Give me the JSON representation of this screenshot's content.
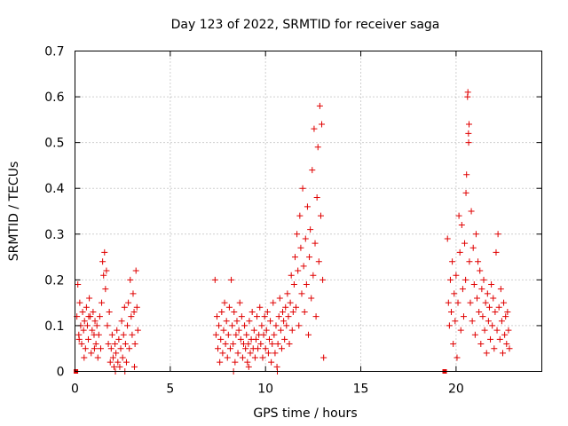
{
  "chart_data": {
    "type": "scatter",
    "title": "Day 123 of 2022, SRMTID for receiver saga",
    "xlabel": "GPS time / hours",
    "ylabel": "SRMTID / TECUs",
    "xlim": [
      0,
      24.5
    ],
    "ylim": [
      0,
      0.7
    ],
    "x_ticks": [
      0,
      5,
      10,
      15,
      20
    ],
    "x_tick_labels": [
      "0",
      "5",
      "10",
      "15",
      "20"
    ],
    "y_ticks": [
      0,
      0.1,
      0.2,
      0.3,
      0.4,
      0.5,
      0.6,
      0.7
    ],
    "y_tick_labels": [
      "0",
      "0.1",
      "0.2",
      "0.3",
      "0.4",
      "0.5",
      "0.6",
      "0.7"
    ],
    "grid": true,
    "marker": "plus",
    "color": "#e00000",
    "zero_markers": [
      [
        0.05,
        0
      ],
      [
        19.4,
        0
      ]
    ],
    "series": [
      {
        "name": "SRMTID",
        "points": [
          [
            0.1,
            0.12
          ],
          [
            0.15,
            0.19
          ],
          [
            0.2,
            0.08
          ],
          [
            0.25,
            0.15
          ],
          [
            0.3,
            0.1
          ],
          [
            0.35,
            0.06
          ],
          [
            0.4,
            0.13
          ],
          [
            0.45,
            0.09
          ],
          [
            0.5,
            0.11
          ],
          [
            0.55,
            0.05
          ],
          [
            0.6,
            0.14
          ],
          [
            0.65,
            0.1
          ],
          [
            0.7,
            0.07
          ],
          [
            0.75,
            0.16
          ],
          [
            0.8,
            0.12
          ],
          [
            0.85,
            0.04
          ],
          [
            0.9,
            0.09
          ],
          [
            0.95,
            0.13
          ],
          [
            1.0,
            0.08
          ],
          [
            1.05,
            0.11
          ],
          [
            1.1,
            0.06
          ],
          [
            1.15,
            0.1
          ],
          [
            1.2,
            0.03
          ],
          [
            1.25,
            0.08
          ],
          [
            1.3,
            0.12
          ],
          [
            1.35,
            0.05
          ],
          [
            1.4,
            0.15
          ],
          [
            1.45,
            0.24
          ],
          [
            1.5,
            0.21
          ],
          [
            1.55,
            0.26
          ],
          [
            1.6,
            0.18
          ],
          [
            1.65,
            0.22
          ],
          [
            1.7,
            0.1
          ],
          [
            1.75,
            0.06
          ],
          [
            1.8,
            0.13
          ],
          [
            1.85,
            0.02
          ],
          [
            1.9,
            0.05
          ],
          [
            1.95,
            0.08
          ],
          [
            2.0,
            0.03
          ],
          [
            2.05,
            0.01
          ],
          [
            2.1,
            0.06
          ],
          [
            2.15,
            0.04
          ],
          [
            2.2,
            0.09
          ],
          [
            2.25,
            0.02
          ],
          [
            2.3,
            0.07
          ],
          [
            2.35,
            0.01
          ],
          [
            2.4,
            0.05
          ],
          [
            2.45,
            0.11
          ],
          [
            2.5,
            0.03
          ],
          [
            2.55,
            0.08
          ],
          [
            2.6,
            0.14
          ],
          [
            2.65,
            0.06
          ],
          [
            2.7,
            0.02
          ],
          [
            2.75,
            0.1
          ],
          [
            2.8,
            0.15
          ],
          [
            2.85,
            0.05
          ],
          [
            2.9,
            0.2
          ],
          [
            2.95,
            0.12
          ],
          [
            3.0,
            0.08
          ],
          [
            3.05,
            0.17
          ],
          [
            3.1,
            0.13
          ],
          [
            3.15,
            0.06
          ],
          [
            3.2,
            0.22
          ],
          [
            3.25,
            0.14
          ],
          [
            3.3,
            0.09
          ],
          [
            0.22,
            0.07
          ],
          [
            0.48,
            0.03
          ],
          [
            0.72,
            0.12
          ],
          [
            1.02,
            0.05
          ],
          [
            2.12,
            0.0
          ],
          [
            2.62,
            0.0
          ],
          [
            3.12,
            0.01
          ],
          [
            7.35,
            0.2
          ],
          [
            7.4,
            0.08
          ],
          [
            7.45,
            0.12
          ],
          [
            7.5,
            0.05
          ],
          [
            7.55,
            0.1
          ],
          [
            7.6,
            0.02
          ],
          [
            7.65,
            0.07
          ],
          [
            7.7,
            0.13
          ],
          [
            7.75,
            0.04
          ],
          [
            7.8,
            0.09
          ],
          [
            7.85,
            0.15
          ],
          [
            7.9,
            0.06
          ],
          [
            7.95,
            0.11
          ],
          [
            8.0,
            0.03
          ],
          [
            8.05,
            0.08
          ],
          [
            8.1,
            0.14
          ],
          [
            8.15,
            0.05
          ],
          [
            8.2,
            0.2
          ],
          [
            8.25,
            0.1
          ],
          [
            8.3,
            0.06
          ],
          [
            8.35,
            0.13
          ],
          [
            8.4,
            0.02
          ],
          [
            8.45,
            0.08
          ],
          [
            8.5,
            0.11
          ],
          [
            8.55,
            0.04
          ],
          [
            8.6,
            0.09
          ],
          [
            8.65,
            0.15
          ],
          [
            8.7,
            0.07
          ],
          [
            8.75,
            0.12
          ],
          [
            8.8,
            0.03
          ],
          [
            8.85,
            0.06
          ],
          [
            8.9,
            0.1
          ],
          [
            8.95,
            0.05
          ],
          [
            9.0,
            0.08
          ],
          [
            9.05,
            0.02
          ],
          [
            9.1,
            0.06
          ],
          [
            9.15,
            0.11
          ],
          [
            9.2,
            0.04
          ],
          [
            9.25,
            0.07
          ],
          [
            9.3,
            0.13
          ],
          [
            9.35,
            0.05
          ],
          [
            9.4,
            0.09
          ],
          [
            9.45,
            0.03
          ],
          [
            9.5,
            0.07
          ],
          [
            9.55,
            0.12
          ],
          [
            9.6,
            0.05
          ],
          [
            9.65,
            0.08
          ],
          [
            9.7,
            0.14
          ],
          [
            9.75,
            0.06
          ],
          [
            9.8,
            0.1
          ],
          [
            9.85,
            0.03
          ],
          [
            9.9,
            0.08
          ],
          [
            9.95,
            0.12
          ],
          [
            10.0,
            0.05
          ],
          [
            10.05,
            0.09
          ],
          [
            10.1,
            0.13
          ],
          [
            10.15,
            0.04
          ],
          [
            10.2,
            0.07
          ],
          [
            10.25,
            0.11
          ],
          [
            10.3,
            0.02
          ],
          [
            10.35,
            0.06
          ],
          [
            10.4,
            0.15
          ],
          [
            10.45,
            0.08
          ],
          [
            10.5,
            0.04
          ],
          [
            10.55,
            0.1
          ],
          [
            10.6,
            0.01
          ],
          [
            10.65,
            0.06
          ],
          [
            10.7,
            0.12
          ],
          [
            10.75,
            0.16
          ],
          [
            10.8,
            0.09
          ],
          [
            10.85,
            0.05
          ],
          [
            10.9,
            0.13
          ],
          [
            10.95,
            0.11
          ],
          [
            11.0,
            0.07
          ],
          [
            11.05,
            0.14
          ],
          [
            11.1,
            0.1
          ],
          [
            11.15,
            0.17
          ],
          [
            11.2,
            0.12
          ],
          [
            11.25,
            0.06
          ],
          [
            11.3,
            0.15
          ],
          [
            11.35,
            0.21
          ],
          [
            11.4,
            0.09
          ],
          [
            11.45,
            0.13
          ],
          [
            11.5,
            0.19
          ],
          [
            11.55,
            0.25
          ],
          [
            11.6,
            0.14
          ],
          [
            11.65,
            0.3
          ],
          [
            11.7,
            0.22
          ],
          [
            11.75,
            0.1
          ],
          [
            11.8,
            0.34
          ],
          [
            11.85,
            0.27
          ],
          [
            11.9,
            0.17
          ],
          [
            11.95,
            0.4
          ],
          [
            12.0,
            0.23
          ],
          [
            12.05,
            0.13
          ],
          [
            12.1,
            0.29
          ],
          [
            12.15,
            0.19
          ],
          [
            12.2,
            0.36
          ],
          [
            12.25,
            0.08
          ],
          [
            12.3,
            0.25
          ],
          [
            12.35,
            0.31
          ],
          [
            12.4,
            0.16
          ],
          [
            12.45,
            0.44
          ],
          [
            12.5,
            0.21
          ],
          [
            12.55,
            0.53
          ],
          [
            12.6,
            0.28
          ],
          [
            12.65,
            0.12
          ],
          [
            12.7,
            0.38
          ],
          [
            12.75,
            0.49
          ],
          [
            12.8,
            0.24
          ],
          [
            12.85,
            0.58
          ],
          [
            12.9,
            0.34
          ],
          [
            12.95,
            0.54
          ],
          [
            13.0,
            0.2
          ],
          [
            13.05,
            0.03
          ],
          [
            8.32,
            0.0
          ],
          [
            9.12,
            0.01
          ],
          [
            10.62,
            0.0
          ],
          [
            19.55,
            0.29
          ],
          [
            19.6,
            0.15
          ],
          [
            19.65,
            0.1
          ],
          [
            19.7,
            0.2
          ],
          [
            19.75,
            0.13
          ],
          [
            19.8,
            0.24
          ],
          [
            19.85,
            0.06
          ],
          [
            19.9,
            0.17
          ],
          [
            19.95,
            0.11
          ],
          [
            20.0,
            0.21
          ],
          [
            20.05,
            0.03
          ],
          [
            20.1,
            0.15
          ],
          [
            20.15,
            0.34
          ],
          [
            20.2,
            0.26
          ],
          [
            20.25,
            0.09
          ],
          [
            20.3,
            0.32
          ],
          [
            20.35,
            0.18
          ],
          [
            20.4,
            0.12
          ],
          [
            20.45,
            0.28
          ],
          [
            20.5,
            0.2
          ],
          [
            20.55,
            0.43
          ],
          [
            20.6,
            0.6
          ],
          [
            20.65,
            0.52
          ],
          [
            20.7,
            0.24
          ],
          [
            20.75,
            0.15
          ],
          [
            20.8,
            0.35
          ],
          [
            20.85,
            0.11
          ],
          [
            20.9,
            0.27
          ],
          [
            20.95,
            0.19
          ],
          [
            21.0,
            0.08
          ],
          [
            21.05,
            0.3
          ],
          [
            21.1,
            0.16
          ],
          [
            21.15,
            0.24
          ],
          [
            21.2,
            0.13
          ],
          [
            21.25,
            0.22
          ],
          [
            21.3,
            0.06
          ],
          [
            21.35,
            0.18
          ],
          [
            21.4,
            0.12
          ],
          [
            21.45,
            0.2
          ],
          [
            21.5,
            0.09
          ],
          [
            21.55,
            0.15
          ],
          [
            21.6,
            0.04
          ],
          [
            21.65,
            0.17
          ],
          [
            21.7,
            0.11
          ],
          [
            21.75,
            0.14
          ],
          [
            21.8,
            0.07
          ],
          [
            21.85,
            0.19
          ],
          [
            21.9,
            0.1
          ],
          [
            21.95,
            0.16
          ],
          [
            22.0,
            0.05
          ],
          [
            22.05,
            0.13
          ],
          [
            22.1,
            0.26
          ],
          [
            22.15,
            0.09
          ],
          [
            22.2,
            0.3
          ],
          [
            22.25,
            0.14
          ],
          [
            22.3,
            0.07
          ],
          [
            22.35,
            0.18
          ],
          [
            22.4,
            0.11
          ],
          [
            22.45,
            0.04
          ],
          [
            22.5,
            0.15
          ],
          [
            22.55,
            0.08
          ],
          [
            22.6,
            0.12
          ],
          [
            22.65,
            0.06
          ],
          [
            22.7,
            0.13
          ],
          [
            22.75,
            0.09
          ],
          [
            22.8,
            0.05
          ],
          [
            20.62,
            0.61
          ],
          [
            20.68,
            0.54
          ],
          [
            20.66,
            0.5
          ],
          [
            20.52,
            0.39
          ]
        ]
      }
    ]
  }
}
